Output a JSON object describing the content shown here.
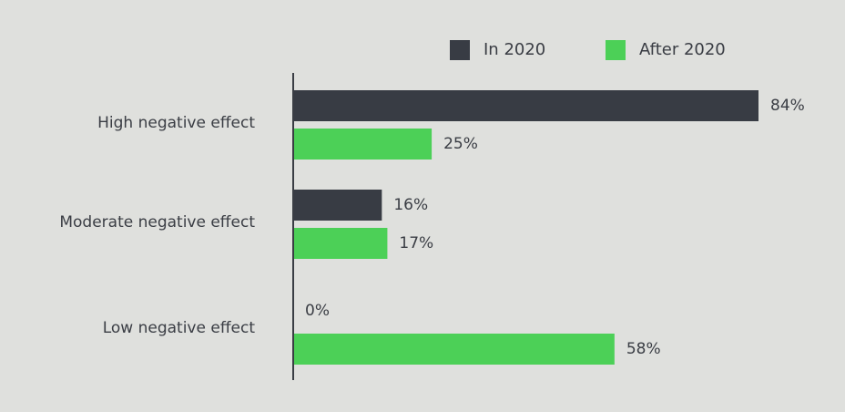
{
  "chart_data": {
    "type": "bar",
    "orientation": "horizontal",
    "categories": [
      "High negative effect",
      "Moderate negative effect",
      "Low negative effect"
    ],
    "series": [
      {
        "name": "In 2020",
        "values": [
          84,
          16,
          0
        ],
        "labels": [
          "84%",
          "16%",
          "0%"
        ],
        "color": "#383c44"
      },
      {
        "name": "After 2020",
        "values": [
          25,
          17,
          58
        ],
        "labels": [
          "25%",
          "17%",
          "58%"
        ],
        "color": "#4cd057"
      }
    ],
    "xlim": [
      0,
      84
    ],
    "unit": "%",
    "legend_position": "top-right",
    "grid": false
  }
}
